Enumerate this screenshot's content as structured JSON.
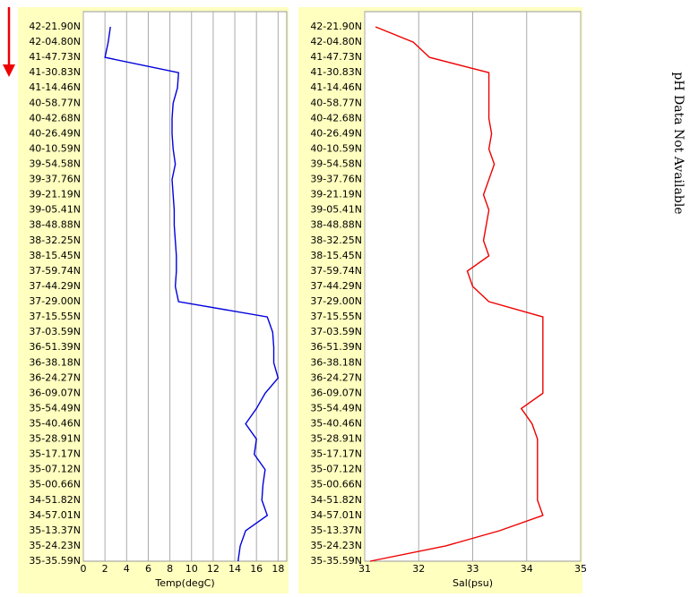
{
  "chart_data": [
    {
      "type": "line",
      "xlabel": "Temp(degC)",
      "categories": [
        "42-21.90N",
        "42-04.80N",
        "41-47.73N",
        "41-30.83N",
        "41-14.46N",
        "40-58.77N",
        "40-42.68N",
        "40-26.49N",
        "40-10.59N",
        "39-54.58N",
        "39-37.76N",
        "39-21.19N",
        "39-05.41N",
        "38-48.88N",
        "38-32.25N",
        "38-15.45N",
        "37-59.74N",
        "37-44.29N",
        "37-29.00N",
        "37-15.55N",
        "37-03.59N",
        "36-51.39N",
        "36-38.18N",
        "36-24.27N",
        "36-09.07N",
        "35-54.49N",
        "35-40.46N",
        "35-28.91N",
        "35-17.17N",
        "35-07.12N",
        "35-00.66N",
        "34-51.82N",
        "34-57.01N",
        "35-13.37N",
        "35-24.23N",
        "35-35.59N"
      ],
      "values": [
        2.5,
        2.3,
        2.0,
        8.8,
        8.7,
        8.3,
        8.2,
        8.2,
        8.3,
        8.5,
        8.2,
        8.3,
        8.4,
        8.4,
        8.5,
        8.6,
        8.6,
        8.5,
        8.8,
        17.0,
        17.5,
        17.6,
        17.6,
        18.0,
        16.8,
        16.0,
        15.0,
        16.0,
        15.8,
        16.8,
        16.6,
        16.5,
        17.0,
        15.0,
        14.5,
        14.3
      ],
      "color": "#0000dd",
      "xlim": [
        0,
        18.8
      ],
      "xticks": [
        0,
        2,
        4,
        6,
        8,
        10,
        12,
        14,
        16,
        18
      ],
      "grid": true
    },
    {
      "type": "line",
      "xlabel": "Sal(psu)",
      "categories": [
        "42-21.90N",
        "42-04.80N",
        "41-47.73N",
        "41-30.83N",
        "41-14.46N",
        "40-58.77N",
        "40-42.68N",
        "40-26.49N",
        "40-10.59N",
        "39-54.58N",
        "39-37.76N",
        "39-21.19N",
        "39-05.41N",
        "38-48.88N",
        "38-32.25N",
        "38-15.45N",
        "37-59.74N",
        "37-44.29N",
        "37-29.00N",
        "37-15.55N",
        "37-03.59N",
        "36-51.39N",
        "36-38.18N",
        "36-24.27N",
        "36-09.07N",
        "35-54.49N",
        "35-40.46N",
        "35-28.91N",
        "35-17.17N",
        "35-07.12N",
        "35-00.66N",
        "34-51.82N",
        "34-57.01N",
        "35-13.37N",
        "35-24.23N",
        "35-35.59N"
      ],
      "values": [
        31.2,
        31.9,
        32.2,
        33.3,
        33.3,
        33.3,
        33.3,
        33.35,
        33.3,
        33.4,
        33.3,
        33.2,
        33.3,
        33.25,
        33.2,
        33.3,
        32.9,
        33.0,
        33.3,
        34.3,
        34.3,
        34.3,
        34.3,
        34.3,
        34.3,
        33.9,
        34.1,
        34.2,
        34.2,
        34.2,
        34.2,
        34.2,
        34.3,
        33.5,
        32.5,
        31.1
      ],
      "color": "#ee0000",
      "xlim": [
        31,
        35
      ],
      "xticks": [
        31,
        32,
        33,
        34,
        35
      ],
      "grid": true
    }
  ],
  "annotation": "pH Data Not Available"
}
